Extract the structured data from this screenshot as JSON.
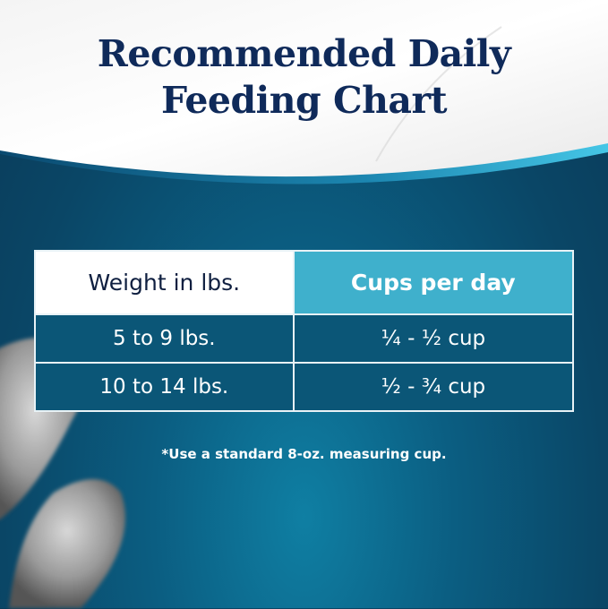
{
  "header": {
    "title_line1": "Recommended Daily",
    "title_line2": "Feeding Chart"
  },
  "table": {
    "columns": [
      "Weight in lbs.",
      "Cups per day"
    ],
    "rows": [
      [
        "5 to 9 lbs.",
        "¼ - ½ cup"
      ],
      [
        "10 to 14 lbs.",
        "½ - ¾ cup"
      ]
    ]
  },
  "footnote": "*Use a standard 8-oz. measuring cup.",
  "colors": {
    "title": "#0f2a5a",
    "header_accent": "#3fb0cc",
    "row_bg": "#0b5677",
    "background": "#0a4666"
  }
}
